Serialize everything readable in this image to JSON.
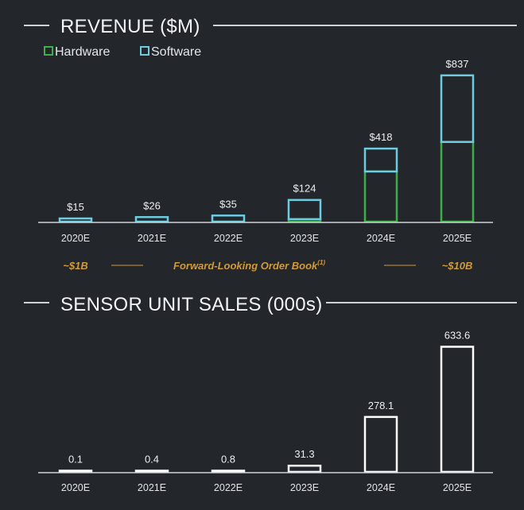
{
  "colors": {
    "background": "#23262b",
    "hardware": "#3fae49",
    "software": "#6ecbe0",
    "units_bar": "#ffffff",
    "rule": "#cfd3d8",
    "accent": "#d19a3a"
  },
  "chart_data": [
    {
      "type": "bar",
      "stacked": true,
      "title": "REVENUE ($M)",
      "categories": [
        "2020E",
        "2021E",
        "2022E",
        "2023E",
        "2024E",
        "2025E"
      ],
      "series": [
        {
          "name": "Hardware",
          "values": [
            0,
            0,
            0,
            14,
            287,
            456
          ]
        },
        {
          "name": "Software",
          "values": [
            15,
            26,
            35,
            110,
            131,
            381
          ]
        }
      ],
      "totals": [
        15,
        26,
        35,
        124,
        418,
        837
      ],
      "total_labels": [
        "$15",
        "$26",
        "$35",
        "$124",
        "$418",
        "$837"
      ],
      "ylim": [
        0,
        900
      ],
      "legend_position": "top-left",
      "grid": false,
      "annotation": {
        "left": "~$1B",
        "center": "Forward-Looking Order Book",
        "center_superscript": "(1)",
        "right": "~$10B"
      }
    },
    {
      "type": "bar",
      "title": "SENSOR UNIT SALES (000s)",
      "categories": [
        "2020E",
        "2021E",
        "2022E",
        "2023E",
        "2024E",
        "2025E"
      ],
      "values": [
        0.1,
        0.4,
        0.8,
        31.3,
        278.1,
        633.6
      ],
      "value_labels": [
        "0.1",
        "0.4",
        "0.8",
        "31.3",
        "278.1",
        "633.6"
      ],
      "ylim": [
        0,
        700
      ],
      "grid": false
    }
  ]
}
